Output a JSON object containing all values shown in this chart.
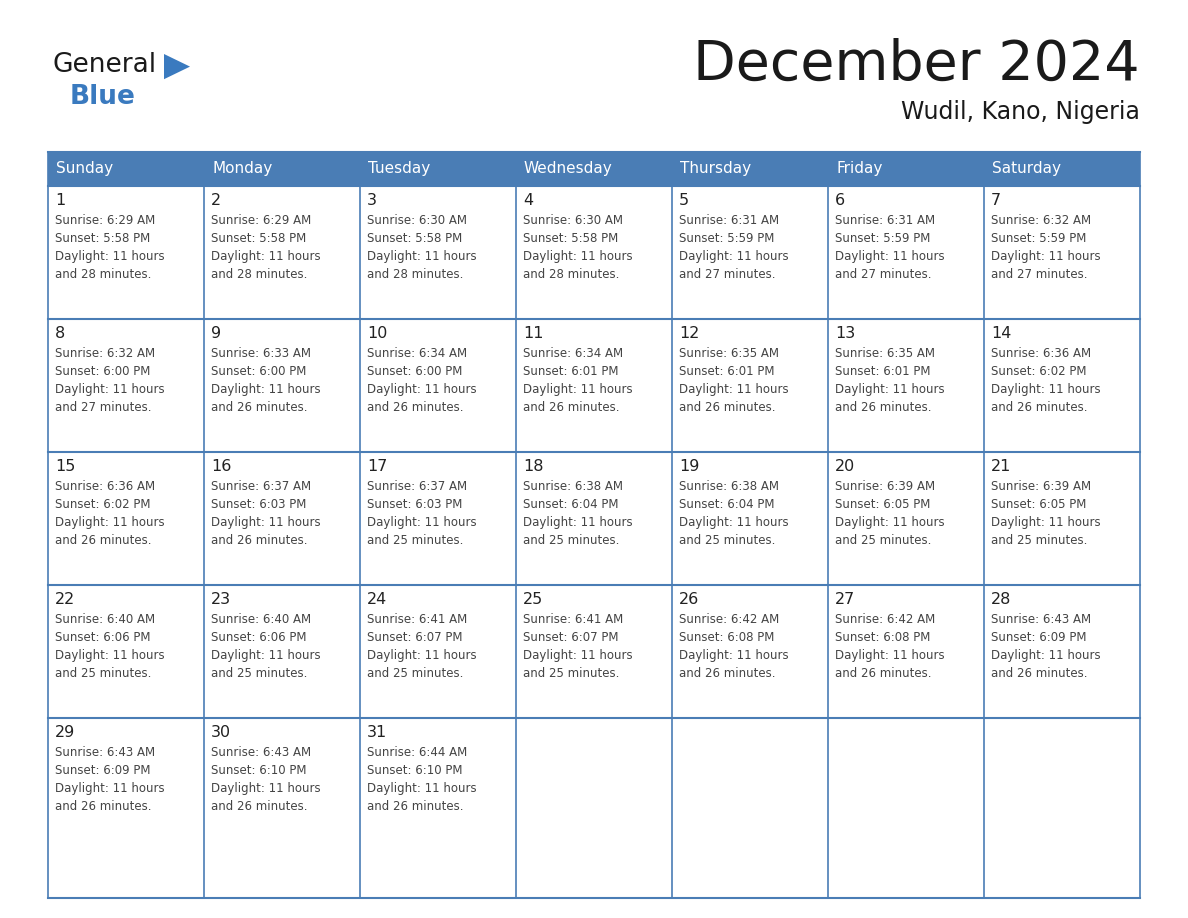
{
  "title": "December 2024",
  "subtitle": "Wudil, Kano, Nigeria",
  "days_of_week": [
    "Sunday",
    "Monday",
    "Tuesday",
    "Wednesday",
    "Thursday",
    "Friday",
    "Saturday"
  ],
  "header_bg_color": "#4A7DB5",
  "header_text_color": "#FFFFFF",
  "cell_bg_color": "#FFFFFF",
  "border_color": "#4A7DB5",
  "title_color": "#1a1a1a",
  "cell_text_color": "#444444",
  "logo_general_color": "#1a1a1a",
  "logo_blue_color": "#3a7abf",
  "logo_triangle_color": "#3a7abf",
  "calendar_data": [
    [
      {
        "day": 1,
        "sunrise": "6:29 AM",
        "sunset": "5:58 PM",
        "daylight": "11 hours and 28 minutes."
      },
      {
        "day": 2,
        "sunrise": "6:29 AM",
        "sunset": "5:58 PM",
        "daylight": "11 hours and 28 minutes."
      },
      {
        "day": 3,
        "sunrise": "6:30 AM",
        "sunset": "5:58 PM",
        "daylight": "11 hours and 28 minutes."
      },
      {
        "day": 4,
        "sunrise": "6:30 AM",
        "sunset": "5:58 PM",
        "daylight": "11 hours and 28 minutes."
      },
      {
        "day": 5,
        "sunrise": "6:31 AM",
        "sunset": "5:59 PM",
        "daylight": "11 hours and 27 minutes."
      },
      {
        "day": 6,
        "sunrise": "6:31 AM",
        "sunset": "5:59 PM",
        "daylight": "11 hours and 27 minutes."
      },
      {
        "day": 7,
        "sunrise": "6:32 AM",
        "sunset": "5:59 PM",
        "daylight": "11 hours and 27 minutes."
      }
    ],
    [
      {
        "day": 8,
        "sunrise": "6:32 AM",
        "sunset": "6:00 PM",
        "daylight": "11 hours and 27 minutes."
      },
      {
        "day": 9,
        "sunrise": "6:33 AM",
        "sunset": "6:00 PM",
        "daylight": "11 hours and 26 minutes."
      },
      {
        "day": 10,
        "sunrise": "6:34 AM",
        "sunset": "6:00 PM",
        "daylight": "11 hours and 26 minutes."
      },
      {
        "day": 11,
        "sunrise": "6:34 AM",
        "sunset": "6:01 PM",
        "daylight": "11 hours and 26 minutes."
      },
      {
        "day": 12,
        "sunrise": "6:35 AM",
        "sunset": "6:01 PM",
        "daylight": "11 hours and 26 minutes."
      },
      {
        "day": 13,
        "sunrise": "6:35 AM",
        "sunset": "6:01 PM",
        "daylight": "11 hours and 26 minutes."
      },
      {
        "day": 14,
        "sunrise": "6:36 AM",
        "sunset": "6:02 PM",
        "daylight": "11 hours and 26 minutes."
      }
    ],
    [
      {
        "day": 15,
        "sunrise": "6:36 AM",
        "sunset": "6:02 PM",
        "daylight": "11 hours and 26 minutes."
      },
      {
        "day": 16,
        "sunrise": "6:37 AM",
        "sunset": "6:03 PM",
        "daylight": "11 hours and 26 minutes."
      },
      {
        "day": 17,
        "sunrise": "6:37 AM",
        "sunset": "6:03 PM",
        "daylight": "11 hours and 25 minutes."
      },
      {
        "day": 18,
        "sunrise": "6:38 AM",
        "sunset": "6:04 PM",
        "daylight": "11 hours and 25 minutes."
      },
      {
        "day": 19,
        "sunrise": "6:38 AM",
        "sunset": "6:04 PM",
        "daylight": "11 hours and 25 minutes."
      },
      {
        "day": 20,
        "sunrise": "6:39 AM",
        "sunset": "6:05 PM",
        "daylight": "11 hours and 25 minutes."
      },
      {
        "day": 21,
        "sunrise": "6:39 AM",
        "sunset": "6:05 PM",
        "daylight": "11 hours and 25 minutes."
      }
    ],
    [
      {
        "day": 22,
        "sunrise": "6:40 AM",
        "sunset": "6:06 PM",
        "daylight": "11 hours and 25 minutes."
      },
      {
        "day": 23,
        "sunrise": "6:40 AM",
        "sunset": "6:06 PM",
        "daylight": "11 hours and 25 minutes."
      },
      {
        "day": 24,
        "sunrise": "6:41 AM",
        "sunset": "6:07 PM",
        "daylight": "11 hours and 25 minutes."
      },
      {
        "day": 25,
        "sunrise": "6:41 AM",
        "sunset": "6:07 PM",
        "daylight": "11 hours and 25 minutes."
      },
      {
        "day": 26,
        "sunrise": "6:42 AM",
        "sunset": "6:08 PM",
        "daylight": "11 hours and 26 minutes."
      },
      {
        "day": 27,
        "sunrise": "6:42 AM",
        "sunset": "6:08 PM",
        "daylight": "11 hours and 26 minutes."
      },
      {
        "day": 28,
        "sunrise": "6:43 AM",
        "sunset": "6:09 PM",
        "daylight": "11 hours and 26 minutes."
      }
    ],
    [
      {
        "day": 29,
        "sunrise": "6:43 AM",
        "sunset": "6:09 PM",
        "daylight": "11 hours and 26 minutes."
      },
      {
        "day": 30,
        "sunrise": "6:43 AM",
        "sunset": "6:10 PM",
        "daylight": "11 hours and 26 minutes."
      },
      {
        "day": 31,
        "sunrise": "6:44 AM",
        "sunset": "6:10 PM",
        "daylight": "11 hours and 26 minutes."
      },
      null,
      null,
      null,
      null
    ]
  ],
  "figsize": [
    11.88,
    9.18
  ],
  "dpi": 100
}
